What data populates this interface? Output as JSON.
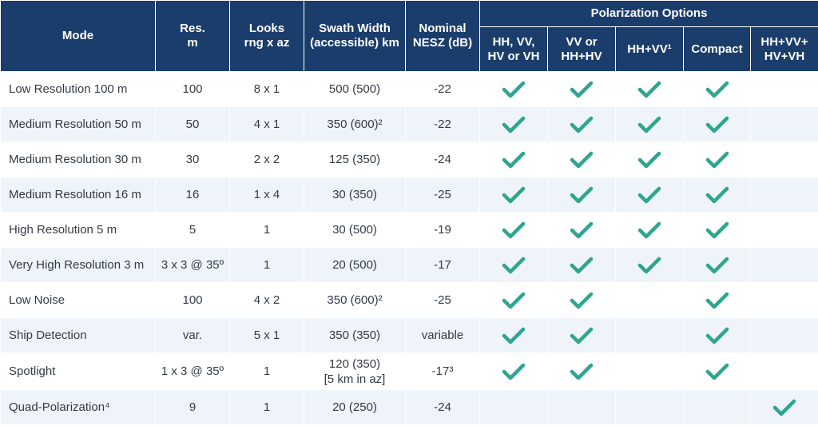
{
  "colors": {
    "header_bg": "#1a3d6b",
    "row_alt": "#eef4fa",
    "check": "#2ea58e"
  },
  "headers": {
    "mode": "Mode",
    "res": "Res.\nm",
    "looks": "Looks\nrng x az",
    "swath": "Swath Width\n(accessible) km",
    "nesz": "Nominal\nNESZ (dB)",
    "polarization_group": "Polarization Options",
    "pol": [
      "HH, VV,\nHV or VH",
      "VV or\nHH+HV",
      "HH+VV¹",
      "Compact",
      "HH+VV+\nHV+VH"
    ]
  },
  "rows": [
    {
      "mode": "Low Resolution 100 m",
      "res": "100",
      "looks": "8 x 1",
      "swath": "500 (500)",
      "nesz": "-22",
      "pol": [
        true,
        true,
        true,
        true,
        false
      ]
    },
    {
      "mode": "Medium Resolution 50 m",
      "res": "50",
      "looks": "4 x 1",
      "swath": "350 (600)²",
      "nesz": "-22",
      "pol": [
        true,
        true,
        true,
        true,
        false
      ]
    },
    {
      "mode": "Medium Resolution 30 m",
      "res": "30",
      "looks": "2 x 2",
      "swath": "125 (350)",
      "nesz": "-24",
      "pol": [
        true,
        true,
        true,
        true,
        false
      ]
    },
    {
      "mode": "Medium Resolution 16 m",
      "res": "16",
      "looks": "1 x 4",
      "swath": "30 (350)",
      "nesz": "-25",
      "pol": [
        true,
        true,
        true,
        true,
        false
      ]
    },
    {
      "mode": "High Resolution 5 m",
      "res": "5",
      "looks": "1",
      "swath": "30 (500)",
      "nesz": "-19",
      "pol": [
        true,
        true,
        true,
        true,
        false
      ]
    },
    {
      "mode": "Very High Resolution 3 m",
      "res": "3 x 3 @ 35º",
      "looks": "1",
      "swath": "20 (500)",
      "nesz": "-17",
      "pol": [
        true,
        true,
        true,
        true,
        false
      ]
    },
    {
      "mode": "Low Noise",
      "res": "100",
      "looks": "4 x 2",
      "swath": "350 (600)²",
      "nesz": "-25",
      "pol": [
        true,
        true,
        false,
        true,
        false
      ]
    },
    {
      "mode": "Ship Detection",
      "res": "var.",
      "looks": "5 x 1",
      "swath": "350 (350)",
      "nesz": "variable",
      "pol": [
        true,
        true,
        false,
        true,
        false
      ]
    },
    {
      "mode": "Spotlight",
      "res": "1 x 3 @ 35º",
      "looks": "1",
      "swath": "120 (350)\n[5 km in az]",
      "nesz": "-17³",
      "pol": [
        true,
        true,
        false,
        true,
        false
      ]
    },
    {
      "mode": "Quad-Polarization⁴",
      "res": "9",
      "looks": "1",
      "swath": "20 (250)",
      "nesz": "-24",
      "pol": [
        false,
        false,
        false,
        false,
        true
      ]
    }
  ]
}
